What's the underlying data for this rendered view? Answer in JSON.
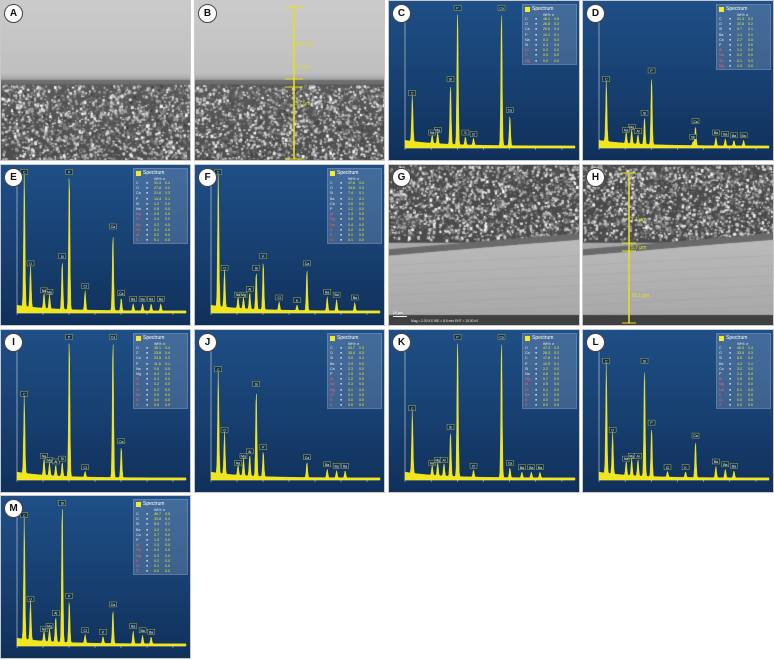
{
  "figure": {
    "panel_labels": [
      "A",
      "B",
      "C",
      "D",
      "E",
      "F",
      "G",
      "H",
      "I",
      "J",
      "K",
      "L",
      "M"
    ],
    "legend_title": "Spectrum",
    "legend_columns": [
      "Wt%",
      "σ"
    ],
    "sem_scale_label": "10 μm",
    "sem_footer": "Mag = 2.00 KX   WD = 8.5 mm   EHT = 15.00 kV",
    "measurements": {
      "B": [
        "95.1 μm",
        "7.5 μm",
        "5.7 μm"
      ],
      "H": [
        "7.1 μm",
        "5.7 μm",
        "75.1 μm"
      ]
    }
  },
  "chart_data": [
    {
      "panel": "C",
      "type": "eds-spectrum",
      "peaks": [
        [
          "C",
          0.28,
          0.34
        ],
        [
          "Mg",
          1.25,
          0.08
        ],
        [
          "Na",
          1.04,
          0.06
        ],
        [
          "Si",
          1.74,
          0.44
        ],
        [
          "P",
          2.01,
          1.0
        ],
        [
          "S",
          2.31,
          0.06
        ],
        [
          "Cl",
          2.62,
          0.05
        ],
        [
          "Ca",
          3.69,
          1.0
        ],
        [
          "Ca",
          4.01,
          0.22
        ]
      ],
      "table": [
        [
          "C",
          "46.1",
          "0.5"
        ],
        [
          "O",
          "26.8",
          "0.2"
        ],
        [
          "Ca",
          "20.5",
          "0.4"
        ],
        [
          "P",
          "10.1",
          "0.1"
        ],
        [
          "Na",
          "0.3",
          "0.0"
        ],
        [
          "Si",
          "0.3",
          "0.0"
        ],
        [
          "Cl",
          "0.2",
          "0.0"
        ],
        [
          "S",
          "0.0",
          "0.0"
        ],
        [
          "Mg",
          "0.0",
          "0.0"
        ]
      ]
    },
    {
      "panel": "D",
      "type": "eds-spectrum",
      "peaks": [
        [
          "C",
          0.28,
          0.44
        ],
        [
          "Mg",
          1.25,
          0.1
        ],
        [
          "Na",
          1.04,
          0.08
        ],
        [
          "Si",
          1.74,
          0.2
        ],
        [
          "P",
          2.01,
          0.5
        ],
        [
          "Al",
          1.49,
          0.07
        ],
        [
          "Ca",
          3.69,
          0.14
        ],
        [
          "Ba",
          4.47,
          0.06
        ],
        [
          "Ba",
          4.83,
          0.05
        ],
        [
          "Ba",
          5.16,
          0.04
        ],
        [
          "Ba",
          5.53,
          0.04
        ],
        [
          "Sb",
          3.6,
          0.03
        ]
      ],
      "table": [
        [
          "C",
          "61.3",
          "0.2"
        ],
        [
          "O",
          "20.6",
          "0.2"
        ],
        [
          "Si",
          "6.7",
          "0.1"
        ],
        [
          "Ba",
          "1.1",
          "0.1"
        ],
        [
          "Ca",
          "2.7",
          "0.0"
        ],
        [
          "P",
          "1.4",
          "0.0"
        ],
        [
          "Al",
          "1.1",
          "0.0"
        ],
        [
          "Na",
          "0.2",
          "0.0"
        ],
        [
          "Sb",
          "0.1",
          "0.0"
        ],
        [
          "Mg",
          "0.0",
          "0.0"
        ]
      ]
    },
    {
      "panel": "E",
      "type": "eds-spectrum",
      "peaks": [
        [
          "C",
          0.28,
          1.0
        ],
        [
          "O",
          0.52,
          0.3
        ],
        [
          "Na",
          1.04,
          0.11
        ],
        [
          "Mg",
          1.25,
          0.1
        ],
        [
          "Si",
          1.74,
          0.35
        ],
        [
          "P",
          2.01,
          1.0
        ],
        [
          "Cl",
          2.62,
          0.14
        ],
        [
          "Ca",
          3.69,
          0.56
        ],
        [
          "Ca",
          4.01,
          0.09
        ],
        [
          "Ba",
          4.47,
          0.05
        ],
        [
          "Ba",
          4.83,
          0.05
        ],
        [
          "Ba",
          5.16,
          0.05
        ],
        [
          "Ba",
          5.53,
          0.05
        ]
      ],
      "table": [
        [
          "C",
          "41.3",
          "0.4"
        ],
        [
          "O",
          "27.8",
          "0.2"
        ],
        [
          "Ca",
          "21.6",
          "0.3"
        ],
        [
          "P",
          "14.4",
          "0.1"
        ],
        [
          "Si",
          "1.2",
          "0.0"
        ],
        [
          "Na",
          "0.8",
          "0.0"
        ],
        [
          "Mg",
          "0.5",
          "0.0"
        ],
        [
          "Cl",
          "0.4",
          "0.0"
        ],
        [
          "Ba",
          "0.2",
          "0.0"
        ],
        [
          "Sb",
          "0.1",
          "0.0"
        ],
        [
          "Al",
          "0.2",
          "0.0"
        ],
        [
          "S",
          "0.1",
          "0.0"
        ]
      ]
    },
    {
      "panel": "F",
      "type": "eds-spectrum",
      "peaks": [
        [
          "C",
          0.28,
          1.0
        ],
        [
          "O",
          0.52,
          0.27
        ],
        [
          "Na",
          1.04,
          0.08
        ],
        [
          "Mg",
          1.25,
          0.08
        ],
        [
          "Al",
          1.49,
          0.12
        ],
        [
          "Si",
          1.74,
          0.27
        ],
        [
          "P",
          2.01,
          0.35
        ],
        [
          "Cl",
          2.62,
          0.06
        ],
        [
          "K",
          3.31,
          0.04
        ],
        [
          "Ca",
          3.69,
          0.3
        ],
        [
          "Ba",
          4.47,
          0.1
        ],
        [
          "Ba",
          4.83,
          0.08
        ],
        [
          "Ba",
          5.53,
          0.06
        ]
      ],
      "table": [
        [
          "C",
          "47.6",
          "0.4"
        ],
        [
          "O",
          "34.8",
          "0.3"
        ],
        [
          "Si",
          "7.4",
          "0.1"
        ],
        [
          "Ba",
          "3.1",
          "0.1"
        ],
        [
          "Ca",
          "2.6",
          "0.0"
        ],
        [
          "P",
          "1.2",
          "0.0"
        ],
        [
          "Al",
          "1.3",
          "0.0"
        ],
        [
          "Mg",
          "0.8",
          "0.0"
        ],
        [
          "Na",
          "0.4",
          "0.0"
        ],
        [
          "S",
          "0.2",
          "0.0"
        ],
        [
          "K",
          "0.1",
          "0.0"
        ],
        [
          "Cl",
          "0.1",
          "0.0"
        ]
      ]
    },
    {
      "panel": "I",
      "type": "eds-spectrum",
      "peaks": [
        [
          "C",
          0.28,
          0.55
        ],
        [
          "Na",
          1.04,
          0.12
        ],
        [
          "Mg",
          1.25,
          0.09
        ],
        [
          "Al",
          1.49,
          0.08
        ],
        [
          "Si",
          1.74,
          0.1
        ],
        [
          "P",
          2.01,
          1.0
        ],
        [
          "Cl",
          2.62,
          0.04
        ],
        [
          "Ca",
          3.69,
          1.0
        ],
        [
          "Ca",
          4.01,
          0.22
        ]
      ],
      "table": [
        [
          "O",
          "39.1",
          "0.3"
        ],
        [
          "C",
          "23.8",
          "0.4"
        ],
        [
          "Ca",
          "23.5",
          "0.3"
        ],
        [
          "P",
          "11.8",
          "0.1"
        ],
        [
          "Na",
          "0.6",
          "0.0"
        ],
        [
          "Mg",
          "0.4",
          "0.0"
        ],
        [
          "Si",
          "0.3",
          "0.0"
        ],
        [
          "Al",
          "0.2",
          "0.0"
        ],
        [
          "Cl",
          "0.2",
          "0.0"
        ],
        [
          "Ba",
          "0.0",
          "0.0"
        ],
        [
          "K",
          "0.0",
          "0.0"
        ],
        [
          "S",
          "0.0",
          "0.0"
        ]
      ]
    },
    {
      "panel": "J",
      "type": "eds-spectrum",
      "peaks": [
        [
          "C",
          0.28,
          0.72
        ],
        [
          "O",
          0.52,
          0.3
        ],
        [
          "Na",
          1.04,
          0.07
        ],
        [
          "Mg",
          1.25,
          0.12
        ],
        [
          "Al",
          1.49,
          0.15
        ],
        [
          "Si",
          1.74,
          0.62
        ],
        [
          "P",
          2.01,
          0.18
        ],
        [
          "Ca",
          3.69,
          0.11
        ],
        [
          "Ba",
          4.47,
          0.06
        ],
        [
          "Ba",
          4.83,
          0.05
        ],
        [
          "Ba",
          5.16,
          0.05
        ]
      ],
      "table": [
        [
          "C",
          "53.7",
          "0.3"
        ],
        [
          "O",
          "30.0",
          "0.3"
        ],
        [
          "Si",
          "9.0",
          "0.1"
        ],
        [
          "Ba",
          "2.9",
          "0.0"
        ],
        [
          "Ca",
          "2.3",
          "0.0"
        ],
        [
          "P",
          "1.9",
          "0.0"
        ],
        [
          "Al",
          "1.2",
          "0.0"
        ],
        [
          "Na",
          "0.3",
          "0.0"
        ],
        [
          "Mg",
          "0.1",
          "0.0"
        ],
        [
          "Cl",
          "0.1",
          "0.0"
        ],
        [
          "S",
          "0.0",
          "0.0"
        ],
        [
          "K",
          "0.0",
          "0.0"
        ]
      ]
    },
    {
      "panel": "K",
      "type": "eds-spectrum",
      "peaks": [
        [
          "C",
          0.28,
          0.45
        ],
        [
          "Na",
          1.04,
          0.07
        ],
        [
          "Mg",
          1.25,
          0.09
        ],
        [
          "Al",
          1.49,
          0.09
        ],
        [
          "Si",
          1.74,
          0.32
        ],
        [
          "P",
          2.01,
          1.0
        ],
        [
          "Cl",
          2.62,
          0.05
        ],
        [
          "Ca",
          3.69,
          1.0
        ],
        [
          "Ca",
          4.01,
          0.07
        ],
        [
          "Ba",
          4.47,
          0.04
        ],
        [
          "Ba",
          4.83,
          0.04
        ],
        [
          "Ba",
          5.16,
          0.04
        ]
      ],
      "table": [
        [
          "O",
          "47.3",
          "0.3"
        ],
        [
          "Ca",
          "28.3",
          "0.2"
        ],
        [
          "C",
          "17.6",
          "0.4"
        ],
        [
          "P",
          "10.9",
          "0.1"
        ],
        [
          "Si",
          "2.2",
          "0.0"
        ],
        [
          "Na",
          "0.6",
          "0.0"
        ],
        [
          "Mg",
          "0.7",
          "0.0"
        ],
        [
          "Al",
          "0.5",
          "0.0"
        ],
        [
          "Cl",
          "0.1",
          "0.0"
        ],
        [
          "Ba",
          "0.2",
          "0.0"
        ],
        [
          "K",
          "0.0",
          "0.0"
        ],
        [
          "S",
          "0.0",
          "0.0"
        ]
      ]
    },
    {
      "panel": "L",
      "type": "eds-spectrum",
      "peaks": [
        [
          "C",
          0.28,
          0.78
        ],
        [
          "O",
          0.52,
          0.3
        ],
        [
          "Na",
          1.04,
          0.1
        ],
        [
          "Mg",
          1.25,
          0.12
        ],
        [
          "Al",
          1.49,
          0.12
        ],
        [
          "Si",
          1.74,
          0.78
        ],
        [
          "P",
          2.01,
          0.35
        ],
        [
          "Cl",
          2.62,
          0.04
        ],
        [
          "K",
          3.31,
          0.04
        ],
        [
          "Ca",
          3.69,
          0.26
        ],
        [
          "Ba",
          4.47,
          0.08
        ],
        [
          "Ba",
          4.83,
          0.06
        ],
        [
          "Ba",
          5.16,
          0.05
        ]
      ],
      "table": [
        [
          "C",
          "46.3",
          "0.4"
        ],
        [
          "O",
          "33.9",
          "0.3"
        ],
        [
          "Si",
          "6.8",
          "0.2"
        ],
        [
          "Ba",
          "4.2",
          "0.1"
        ],
        [
          "Ca",
          "3.2",
          "0.0"
        ],
        [
          "P",
          "2.4",
          "0.0"
        ],
        [
          "Al",
          "1.9",
          "0.0"
        ],
        [
          "Mg",
          "0.1",
          "0.0"
        ],
        [
          "Na",
          "0.1",
          "0.0"
        ],
        [
          "K",
          "0.1",
          "0.0"
        ],
        [
          "Cl",
          "0.0",
          "0.0"
        ],
        [
          "S",
          "0.0",
          "0.0"
        ]
      ]
    },
    {
      "panel": "M",
      "type": "eds-spectrum",
      "peaks": [
        [
          "C",
          0.28,
          0.86
        ],
        [
          "O",
          0.52,
          0.28
        ],
        [
          "Na",
          1.04,
          0.07
        ],
        [
          "Mg",
          1.25,
          0.09
        ],
        [
          "Al",
          1.49,
          0.18
        ],
        [
          "Si",
          1.74,
          1.0
        ],
        [
          "P",
          2.01,
          0.3
        ],
        [
          "Cl",
          2.62,
          0.06
        ],
        [
          "K",
          3.31,
          0.05
        ],
        [
          "Ca",
          3.69,
          0.24
        ],
        [
          "Ba",
          4.47,
          0.09
        ],
        [
          "Ba",
          4.83,
          0.06
        ],
        [
          "Ba",
          5.16,
          0.05
        ]
      ],
      "table": [
        [
          "C",
          "46.7",
          "0.5"
        ],
        [
          "O",
          "33.8",
          "0.4"
        ],
        [
          "Si",
          "8.6",
          "0.2"
        ],
        [
          "Ba",
          "4.2",
          "0.1"
        ],
        [
          "Ca",
          "2.7",
          "0.0"
        ],
        [
          "P",
          "1.3",
          "0.0"
        ],
        [
          "Al",
          "1.3",
          "0.0"
        ],
        [
          "Na",
          "0.4",
          "0.0"
        ],
        [
          "Mg",
          "0.3",
          "0.0"
        ],
        [
          "K",
          "0.2",
          "0.0"
        ],
        [
          "Cl",
          "0.1",
          "0.0"
        ],
        [
          "S",
          "0.0",
          "0.0"
        ]
      ]
    }
  ]
}
